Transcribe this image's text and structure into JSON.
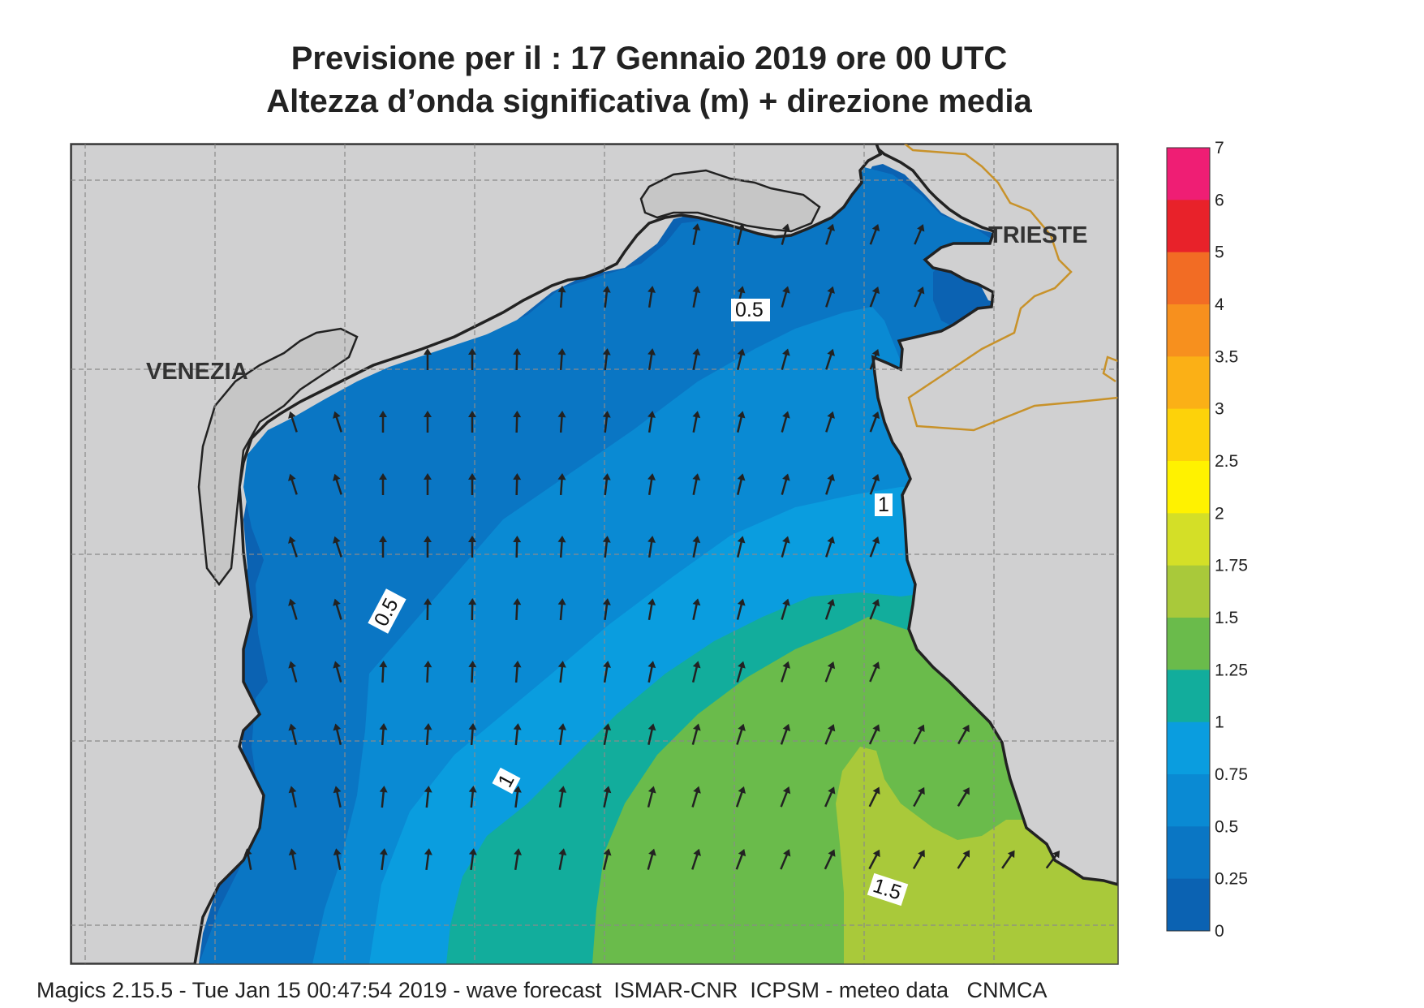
{
  "title": {
    "line1": "Previsione per il  :  17  Gennaio  2019   ore 00 UTC",
    "line2": "Altezza d’onda significativa (m) + direzione media"
  },
  "places": {
    "venezia": "VENEZIA",
    "trieste": "TRIESTE"
  },
  "contour_labels": {
    "a": "0.5",
    "b": "0.5",
    "c": "1",
    "d": "1",
    "e": "1.5"
  },
  "colorbar": {
    "labels": [
      "7",
      "6",
      "5",
      "4",
      "3.5",
      "3",
      "2.5",
      "2",
      "1.75",
      "1.5",
      "1.25",
      "1",
      "0.75",
      "0.5",
      "0.25",
      "0"
    ],
    "colors": [
      "#ef1e74",
      "#e8222a",
      "#f26c24",
      "#f7901e",
      "#fbb016",
      "#fdd20a",
      "#fff200",
      "#d4df27",
      "#a9c93a",
      "#6abb4b",
      "#12ad9c",
      "#0a9ddf",
      "#0a8ad3",
      "#0a76c4",
      "#0b62b2"
    ]
  },
  "map_colors": {
    "land": "#d0d0d1",
    "land_light": "#c6c6c6",
    "border": "#c8922a",
    "arrow": "#222222"
  },
  "footer": "Magics 2.15.5 - Tue Jan 15 00:47:54 2019 - wave forecast  ISMAR-CNR  ICPSM - meteo data   CNMCA"
}
